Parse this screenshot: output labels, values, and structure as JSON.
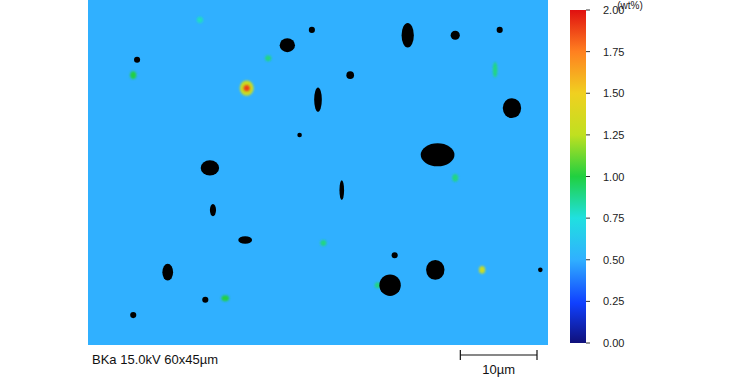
{
  "chart_data": {
    "type": "heatmap",
    "title": "BKa 15.0kV 60x45µm",
    "xlim": [
      0,
      60
    ],
    "ylim": [
      0,
      45
    ],
    "tick_labels": false,
    "background_value": 0.5,
    "pores": [
      {
        "x": 26.0,
        "y": 5.9,
        "rx": 1.0,
        "ry": 0.9
      },
      {
        "x": 41.7,
        "y": 4.6,
        "rx": 0.8,
        "ry": 1.6
      },
      {
        "x": 47.9,
        "y": 4.6,
        "rx": 0.6,
        "ry": 0.6
      },
      {
        "x": 55.3,
        "y": 14.1,
        "rx": 1.2,
        "ry": 1.3
      },
      {
        "x": 45.6,
        "y": 20.2,
        "rx": 2.2,
        "ry": 1.5
      },
      {
        "x": 30.0,
        "y": 13.0,
        "rx": 0.5,
        "ry": 1.6
      },
      {
        "x": 15.9,
        "y": 21.9,
        "rx": 1.2,
        "ry": 1.0
      },
      {
        "x": 10.4,
        "y": 35.5,
        "rx": 0.7,
        "ry": 1.1
      },
      {
        "x": 20.5,
        "y": 31.3,
        "rx": 0.9,
        "ry": 0.5
      },
      {
        "x": 39.4,
        "y": 37.2,
        "rx": 1.4,
        "ry": 1.4
      },
      {
        "x": 45.3,
        "y": 35.2,
        "rx": 1.2,
        "ry": 1.3
      },
      {
        "x": 33.1,
        "y": 24.8,
        "rx": 0.3,
        "ry": 1.3
      },
      {
        "x": 16.3,
        "y": 27.4,
        "rx": 0.4,
        "ry": 0.8
      },
      {
        "x": 34.2,
        "y": 9.8,
        "rx": 0.5,
        "ry": 0.5
      },
      {
        "x": 6.4,
        "y": 7.8,
        "rx": 0.4,
        "ry": 0.4
      },
      {
        "x": 53.7,
        "y": 3.9,
        "rx": 0.4,
        "ry": 0.4
      },
      {
        "x": 15.3,
        "y": 39.1,
        "rx": 0.4,
        "ry": 0.4
      },
      {
        "x": 5.9,
        "y": 41.1,
        "rx": 0.4,
        "ry": 0.4
      },
      {
        "x": 40.0,
        "y": 33.3,
        "rx": 0.4,
        "ry": 0.4
      },
      {
        "x": 29.2,
        "y": 3.9,
        "rx": 0.4,
        "ry": 0.4
      },
      {
        "x": 59.0,
        "y": 35.2,
        "rx": 0.3,
        "ry": 0.3
      },
      {
        "x": 27.6,
        "y": 17.6,
        "rx": 0.3,
        "ry": 0.3
      }
    ],
    "spots": [
      {
        "x": 20.7,
        "y": 11.5,
        "rx": 0.9,
        "ry": 1.0,
        "value": 1.3
      },
      {
        "x": 20.7,
        "y": 11.5,
        "rx": 0.4,
        "ry": 0.4,
        "value": 1.9
      },
      {
        "x": 5.9,
        "y": 9.8,
        "rx": 0.4,
        "ry": 0.5,
        "value": 1.0
      },
      {
        "x": 23.5,
        "y": 7.6,
        "rx": 0.4,
        "ry": 0.4,
        "value": 0.9
      },
      {
        "x": 53.1,
        "y": 9.1,
        "rx": 0.3,
        "ry": 1.0,
        "value": 0.9
      },
      {
        "x": 47.9,
        "y": 23.2,
        "rx": 0.4,
        "ry": 0.5,
        "value": 0.9
      },
      {
        "x": 51.4,
        "y": 35.2,
        "rx": 0.4,
        "ry": 0.5,
        "value": 1.3
      },
      {
        "x": 17.9,
        "y": 38.9,
        "rx": 0.5,
        "ry": 0.4,
        "value": 1.0
      },
      {
        "x": 30.7,
        "y": 31.7,
        "rx": 0.4,
        "ry": 0.4,
        "value": 0.9
      },
      {
        "x": 14.6,
        "y": 2.6,
        "rx": 0.4,
        "ry": 0.4,
        "value": 0.8
      },
      {
        "x": 37.8,
        "y": 37.2,
        "rx": 0.4,
        "ry": 0.4,
        "value": 0.9
      }
    ],
    "colorbar": {
      "label": "(wt%)",
      "range": [
        0,
        2
      ],
      "ticks": [
        {
          "value": 0,
          "label": "0.00"
        },
        {
          "value": 0.25,
          "label": "0.25"
        },
        {
          "value": 0.5,
          "label": "0.50"
        },
        {
          "value": 0.75,
          "label": "0.75"
        },
        {
          "value": 1,
          "label": "1.00"
        },
        {
          "value": 1.25,
          "label": "1.25"
        },
        {
          "value": 1.5,
          "label": "1.50"
        },
        {
          "value": 1.75,
          "label": "1.75"
        },
        {
          "value": 2,
          "label": "2.00"
        }
      ]
    },
    "scale_bar": {
      "length": 10,
      "label": "10µm"
    }
  }
}
